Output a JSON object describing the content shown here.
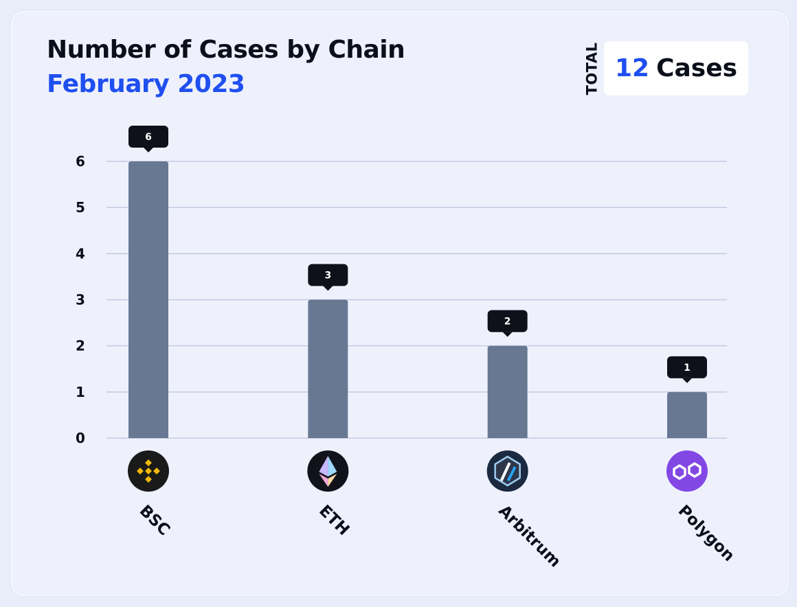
{
  "header": {
    "title": "Number of Cases by Chain",
    "subtitle": "February 2023"
  },
  "total": {
    "label": "TOTAL",
    "count": "12",
    "unit": "Cases"
  },
  "colors": {
    "bar": "#687893",
    "grid": "#c3c9e0",
    "title": "#0b0f1a",
    "accent": "#1f4ff0",
    "label_bg": "#0e1119"
  },
  "chart_data": {
    "type": "bar",
    "title": "Number of Cases by Chain",
    "subtitle": "February 2023",
    "categories": [
      "BSC",
      "ETH",
      "Arbitrum",
      "Polygon"
    ],
    "values": [
      6,
      3,
      2,
      1
    ],
    "data_labels": [
      "6",
      "3",
      "2",
      "1"
    ],
    "icons": [
      "bnb-logo-icon",
      "ethereum-logo-icon",
      "arbitrum-logo-icon",
      "polygon-logo-icon"
    ],
    "yticks": [
      "0",
      "1",
      "2",
      "3",
      "4",
      "5",
      "6"
    ],
    "ylim": [
      0,
      6
    ],
    "grid": true,
    "legend": false,
    "xlabel": "",
    "ylabel": ""
  }
}
